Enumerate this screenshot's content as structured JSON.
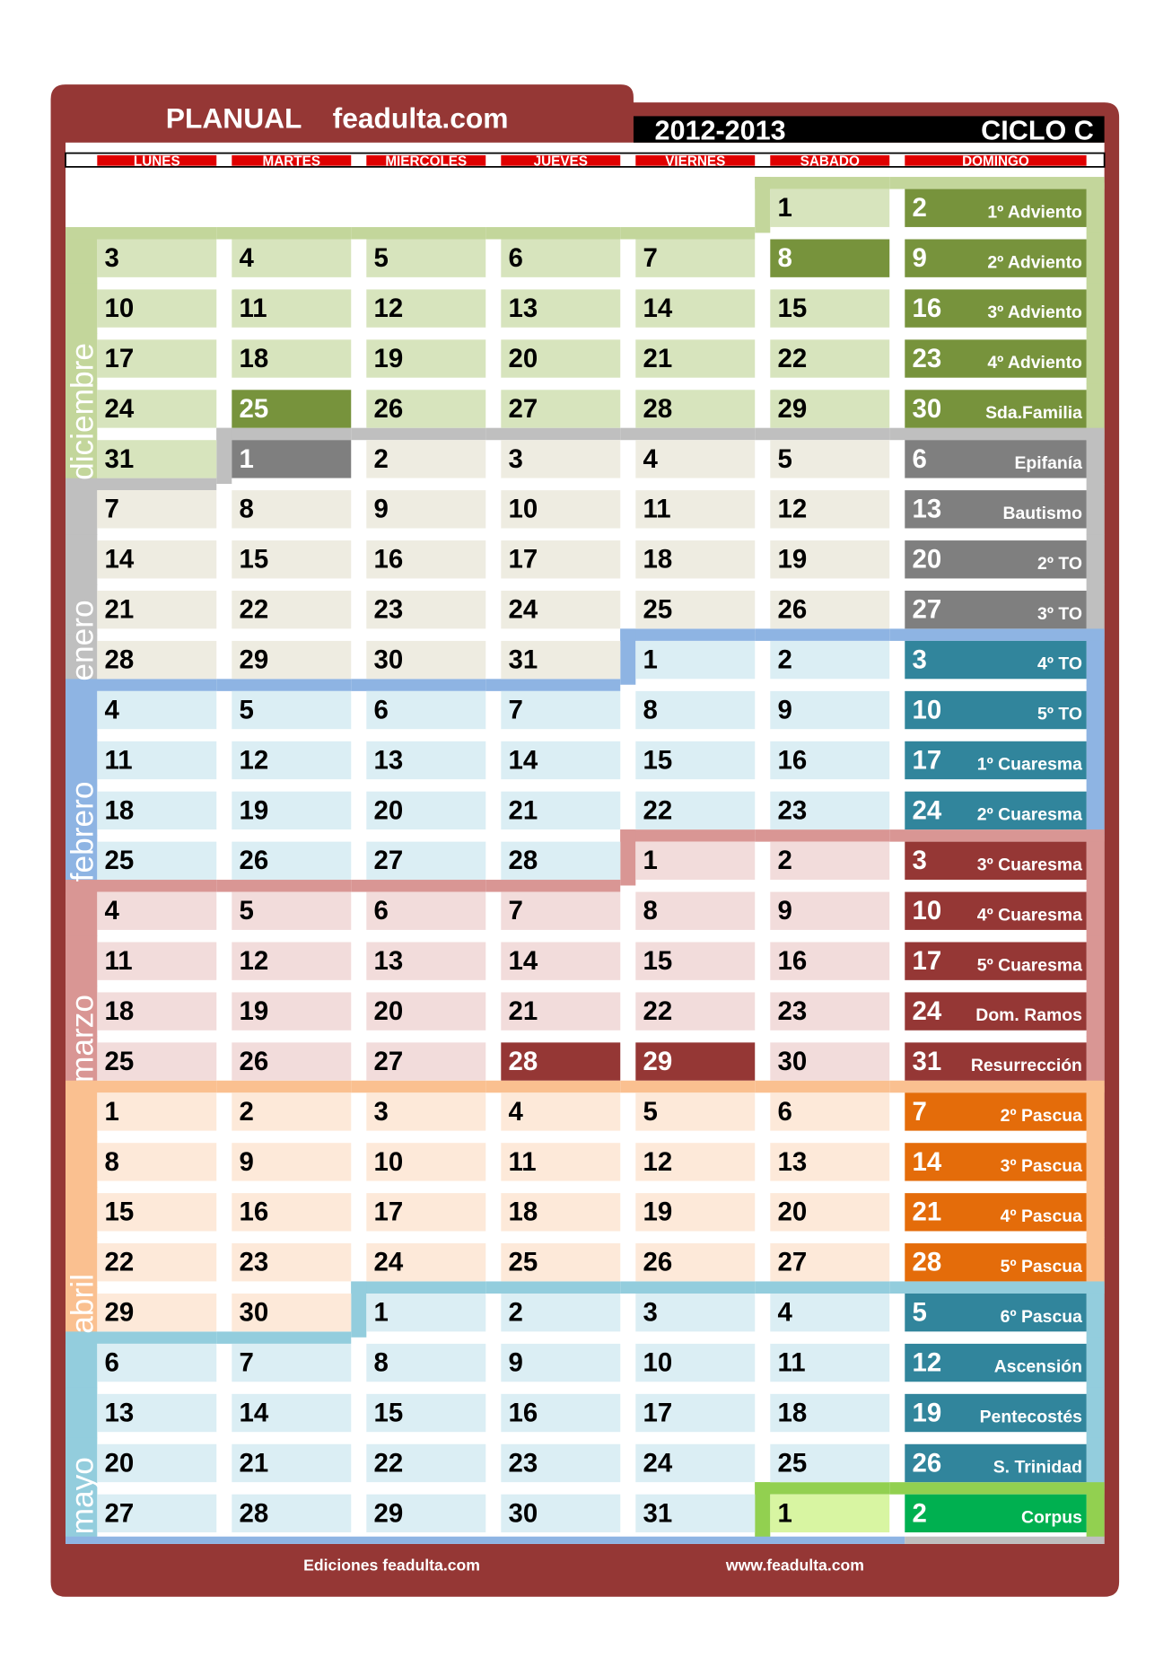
{
  "header": {
    "title": "PLANUAL",
    "site": "feadulta.com",
    "year": "2012-2013",
    "cycle": "CICLO C"
  },
  "days": [
    "LUNES",
    "MARTES",
    "MIERCOLES",
    "JUEVES",
    "VIERNES",
    "SABADO",
    "DOMINGO"
  ],
  "months": [
    {
      "name": "diciembre",
      "light": "#d7e4bd",
      "dark": "#77933c",
      "band": "#c3d69b"
    },
    {
      "name": "enero",
      "light": "#eeece1",
      "dark": "#7f7f7f",
      "band": "#bfbfbf"
    },
    {
      "name": "febrero",
      "light": "#dbeef4",
      "dark": "#31859c",
      "band": "#8eb4e3"
    },
    {
      "name": "marzo",
      "light": "#f2dcdb",
      "dark": "#953735",
      "band": "#d99694"
    },
    {
      "name": "abril",
      "light": "#fde9d9",
      "dark": "#e46c0a",
      "band": "#fac090"
    },
    {
      "name": "mayo",
      "light": "#dbeef4",
      "dark": "#31859c",
      "band": "#93cddd"
    },
    {
      "light": "#d8f5a2",
      "dark": "#00b050",
      "band": "#92d050"
    }
  ],
  "weeks": [
    {
      "days": [
        null,
        null,
        null,
        null,
        null,
        "1",
        "2"
      ],
      "feast": "1º Adviento"
    },
    {
      "days": [
        "3",
        "4",
        "5",
        "6",
        "7",
        "8",
        "9"
      ],
      "feast": "2º Adviento"
    },
    {
      "days": [
        "10",
        "11",
        "12",
        "13",
        "14",
        "15",
        "16"
      ],
      "feast": "3º Adviento"
    },
    {
      "days": [
        "17",
        "18",
        "19",
        "20",
        "21",
        "22",
        "23"
      ],
      "feast": "4º Adviento"
    },
    {
      "days": [
        "24",
        "25",
        "26",
        "27",
        "28",
        "29",
        "30"
      ],
      "feast": "Sda.Familia"
    },
    {
      "days": [
        "31",
        "1",
        "2",
        "3",
        "4",
        "5",
        "6"
      ],
      "feast": "Epifanía"
    },
    {
      "days": [
        "7",
        "8",
        "9",
        "10",
        "11",
        "12",
        "13"
      ],
      "feast": "Bautismo"
    },
    {
      "days": [
        "14",
        "15",
        "16",
        "17",
        "18",
        "19",
        "20"
      ],
      "feast": "2º TO"
    },
    {
      "days": [
        "21",
        "22",
        "23",
        "24",
        "25",
        "26",
        "27"
      ],
      "feast": "3º TO"
    },
    {
      "days": [
        "28",
        "29",
        "30",
        "31",
        "1",
        "2",
        "3"
      ],
      "feast": "4º TO"
    },
    {
      "days": [
        "4",
        "5",
        "6",
        "7",
        "8",
        "9",
        "10"
      ],
      "feast": "5º TO"
    },
    {
      "days": [
        "11",
        "12",
        "13",
        "14",
        "15",
        "16",
        "17"
      ],
      "feast": "1º Cuaresma"
    },
    {
      "days": [
        "18",
        "19",
        "20",
        "21",
        "22",
        "23",
        "24"
      ],
      "feast": "2º Cuaresma"
    },
    {
      "days": [
        "25",
        "26",
        "27",
        "28",
        "1",
        "2",
        "3"
      ],
      "feast": "3º Cuaresma"
    },
    {
      "days": [
        "4",
        "5",
        "6",
        "7",
        "8",
        "9",
        "10"
      ],
      "feast": "4º Cuaresma"
    },
    {
      "days": [
        "11",
        "12",
        "13",
        "14",
        "15",
        "16",
        "17"
      ],
      "feast": "5º Cuaresma"
    },
    {
      "days": [
        "18",
        "19",
        "20",
        "21",
        "22",
        "23",
        "24"
      ],
      "feast": "Dom. Ramos"
    },
    {
      "days": [
        "25",
        "26",
        "27",
        "28",
        "29",
        "30",
        "31"
      ],
      "feast": "Resurrección"
    },
    {
      "days": [
        "1",
        "2",
        "3",
        "4",
        "5",
        "6",
        "7"
      ],
      "feast": "2º Pascua"
    },
    {
      "days": [
        "8",
        "9",
        "10",
        "11",
        "12",
        "13",
        "14"
      ],
      "feast": "3º Pascua"
    },
    {
      "days": [
        "15",
        "16",
        "17",
        "18",
        "19",
        "20",
        "21"
      ],
      "feast": "4º Pascua"
    },
    {
      "days": [
        "22",
        "23",
        "24",
        "25",
        "26",
        "27",
        "28"
      ],
      "feast": "5º Pascua"
    },
    {
      "days": [
        "29",
        "30",
        "1",
        "2",
        "3",
        "4",
        "5"
      ],
      "feast": "6º Pascua"
    },
    {
      "days": [
        "6",
        "7",
        "8",
        "9",
        "10",
        "11",
        "12"
      ],
      "feast": "Ascensión"
    },
    {
      "days": [
        "13",
        "14",
        "15",
        "16",
        "17",
        "18",
        "19"
      ],
      "feast": "Pentecostés"
    },
    {
      "days": [
        "20",
        "21",
        "22",
        "23",
        "24",
        "25",
        "26"
      ],
      "feast": "S. Trinidad"
    },
    {
      "days": [
        "27",
        "28",
        "29",
        "30",
        "31",
        "1",
        "2"
      ],
      "feast": "Corpus"
    }
  ],
  "footer": {
    "left": "Ediciones feadulta.com",
    "right": "www.feadulta.com"
  }
}
